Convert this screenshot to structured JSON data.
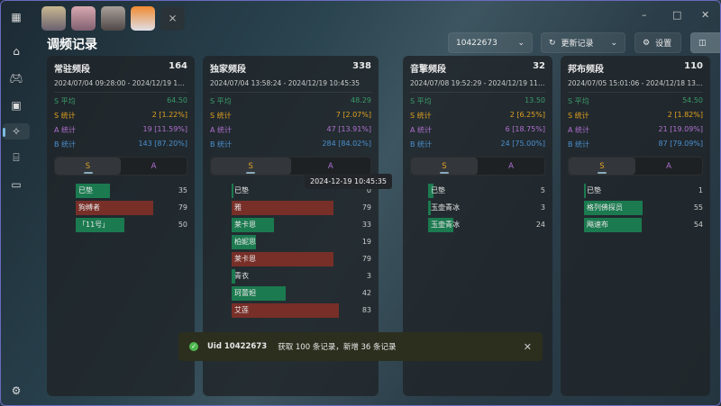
{
  "app": {
    "page_title": "调频记录"
  },
  "toolbar": {
    "uid": "10422673",
    "update_label": "更新记录",
    "settings_label": "设置"
  },
  "colors": {
    "s_avg": "#3a9a6a",
    "s": "#e0a020",
    "a": "#b070d0",
    "b": "#4a90d0",
    "bar_green": "#1b7a4f",
    "bar_red": "#782f28"
  },
  "labels": {
    "s_avg": "S 平均",
    "s": "S 统计",
    "a": "A 统计",
    "b": "B 统计",
    "tab_s": "S",
    "tab_a": "A"
  },
  "cards": [
    {
      "name": "常驻频段",
      "total": "164",
      "range": "2024/07/04 09:28:00 - 2024/12/19 10:3...",
      "s_avg": "64.50",
      "s": "2 [1.22%]",
      "a": "19 [11.59%]",
      "b": "143 [87.20%]",
      "items": [
        {
          "name": "已垫",
          "count": 35,
          "color": "green"
        },
        {
          "name": "狗缚者",
          "count": 79,
          "color": "red"
        },
        {
          "name": "「11号」",
          "count": 50,
          "color": "green"
        }
      ]
    },
    {
      "name": "独家频段",
      "total": "338",
      "range": "2024/07/04 13:58:24 - 2024/12/19 10:45:35",
      "s_avg": "48.29",
      "s": "7 [2.07%]",
      "a": "47 [13.91%]",
      "b": "284 [84.02%]",
      "items": [
        {
          "name": "已垫",
          "count": 0,
          "color": "green"
        },
        {
          "name": "雅",
          "count": 79,
          "color": "red"
        },
        {
          "name": "莱卡恩",
          "count": 33,
          "color": "green"
        },
        {
          "name": "柏妮思",
          "count": 19,
          "color": "green"
        },
        {
          "name": "莱卡恩",
          "count": 79,
          "color": "red"
        },
        {
          "name": "青衣",
          "count": 3,
          "color": "green"
        },
        {
          "name": "珂蕾妲",
          "count": 42,
          "color": "green"
        },
        {
          "name": "艾莲",
          "count": 83,
          "color": "red"
        }
      ]
    },
    {
      "name": "音擎频段",
      "total": "32",
      "range": "2024/07/08 19:52:29 - 2024/12/19 11:4...",
      "s_avg": "13.50",
      "s": "2 [6.25%]",
      "a": "6 [18.75%]",
      "b": "24 [75.00%]",
      "items": [
        {
          "name": "已垫",
          "count": 5,
          "color": "green"
        },
        {
          "name": "玉壶青冰",
          "count": 3,
          "color": "green"
        },
        {
          "name": "玉壶青冰",
          "count": 24,
          "color": "green"
        }
      ]
    },
    {
      "name": "邦布频段",
      "total": "110",
      "range": "2024/07/05 15:01:06 - 2024/12/18 13:0...",
      "s_avg": "54.50",
      "s": "2 [1.82%]",
      "a": "21 [19.09%]",
      "b": "87 [79.09%]",
      "items": [
        {
          "name": "已垫",
          "count": 1,
          "color": "green"
        },
        {
          "name": "格列佛探员",
          "count": 55,
          "color": "green"
        },
        {
          "name": "飚速布",
          "count": 54,
          "color": "green"
        }
      ]
    }
  ],
  "tooltip": "2024-12-19 10:45:35",
  "toast": {
    "uid": "Uid 10422673",
    "message": "获取 100 条记录，新增 36 条记录"
  }
}
